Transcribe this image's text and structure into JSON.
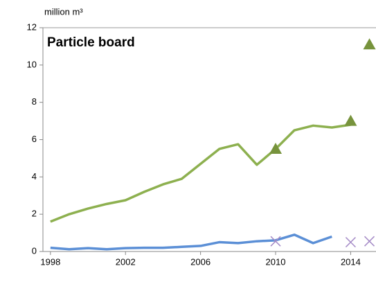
{
  "chart_data": {
    "type": "line",
    "title": "Particle board",
    "y_label": "million m³",
    "xlim": [
      1997.6,
      2015.35
    ],
    "xticks": [
      1998,
      2002,
      2006,
      2010,
      2014
    ],
    "ylim": [
      0,
      12
    ],
    "yticks": [
      0,
      2,
      4,
      6,
      8,
      10,
      12
    ],
    "series": [
      {
        "color": "#8db04f",
        "marker": "none",
        "x": [
          1998,
          1999,
          2000,
          2001,
          2002,
          2003,
          2004,
          2005,
          2006,
          2007,
          2008,
          2009,
          2010,
          2011,
          2012,
          2013,
          2014
        ],
        "values": [
          1.6,
          2.0,
          2.3,
          2.55,
          2.75,
          3.2,
          3.6,
          3.9,
          4.7,
          5.5,
          5.75,
          4.65,
          5.5,
          6.5,
          6.75,
          6.65,
          6.8
        ]
      },
      {
        "color": "#5b8fd6",
        "marker": "none",
        "x": [
          1998,
          1999,
          2000,
          2001,
          2002,
          2003,
          2004,
          2005,
          2006,
          2007,
          2008,
          2009,
          2010,
          2011,
          2012,
          2013
        ],
        "values": [
          0.2,
          0.12,
          0.18,
          0.12,
          0.18,
          0.2,
          0.2,
          0.25,
          0.3,
          0.5,
          0.45,
          0.55,
          0.6,
          0.9,
          0.45,
          0.8
        ]
      },
      {
        "color": "#77933c",
        "marker": "triangle",
        "x": [
          2010,
          2014,
          2015
        ],
        "values": [
          5.5,
          7.0,
          11.1
        ]
      },
      {
        "color": "#a58bc7",
        "marker": "x",
        "x": [
          2010,
          2014,
          2015
        ],
        "values": [
          0.55,
          0.5,
          0.55
        ]
      }
    ]
  }
}
